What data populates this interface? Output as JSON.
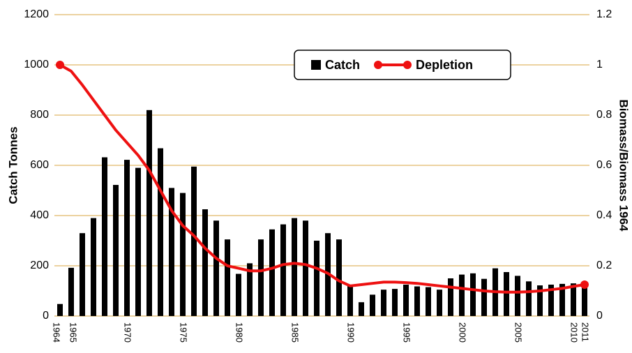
{
  "chart_data": {
    "type": "bar_line",
    "categories": [
      "1964",
      "1965",
      null,
      null,
      null,
      null,
      "1970",
      null,
      null,
      null,
      null,
      "1975",
      null,
      null,
      null,
      null,
      "1980",
      null,
      null,
      null,
      null,
      "1985",
      null,
      null,
      null,
      null,
      "1990",
      null,
      null,
      null,
      null,
      "1995",
      null,
      null,
      null,
      null,
      "2000",
      null,
      null,
      null,
      null,
      "2005",
      null,
      null,
      null,
      null,
      "2010",
      "2011"
    ],
    "series": [
      {
        "name": "Catch",
        "type": "bar",
        "color": "#000000",
        "values": [
          48,
          192,
          330,
          390,
          632,
          522,
          622,
          590,
          820,
          668,
          510,
          490,
          595,
          425,
          380,
          305,
          168,
          210,
          305,
          345,
          365,
          390,
          380,
          300,
          330,
          305,
          125,
          55,
          85,
          105,
          108,
          125,
          118,
          115,
          105,
          150,
          165,
          170,
          148,
          190,
          175,
          160,
          138,
          122,
          125,
          128,
          130,
          128
        ]
      },
      {
        "name": "Depletion",
        "type": "line",
        "axis": "y2",
        "color": "#ee1111",
        "values": [
          1.0,
          0.975,
          0.92,
          0.86,
          0.8,
          0.74,
          0.69,
          0.64,
          0.58,
          0.5,
          0.42,
          0.36,
          0.32,
          0.27,
          0.23,
          0.2,
          0.19,
          0.18,
          0.18,
          0.19,
          0.205,
          0.21,
          0.205,
          0.19,
          0.17,
          0.14,
          0.12,
          0.125,
          0.13,
          0.135,
          0.135,
          0.133,
          0.13,
          0.125,
          0.12,
          0.115,
          0.11,
          0.105,
          0.1,
          0.097,
          0.095,
          0.095,
          0.097,
          0.1,
          0.105,
          0.11,
          0.118,
          0.125
        ]
      }
    ],
    "ylabel": "Catch Tonnes",
    "y2label": "Biomass/Biomass 1964",
    "ylim": [
      0,
      1200
    ],
    "yticks": [
      0,
      200,
      400,
      600,
      800,
      1000,
      1200
    ],
    "y2lim": [
      0,
      1.2
    ],
    "y2ticks": [
      0,
      0.2,
      0.4,
      0.6,
      0.8,
      1,
      1.2
    ],
    "grid": true,
    "grid_color": "#d9a441"
  }
}
